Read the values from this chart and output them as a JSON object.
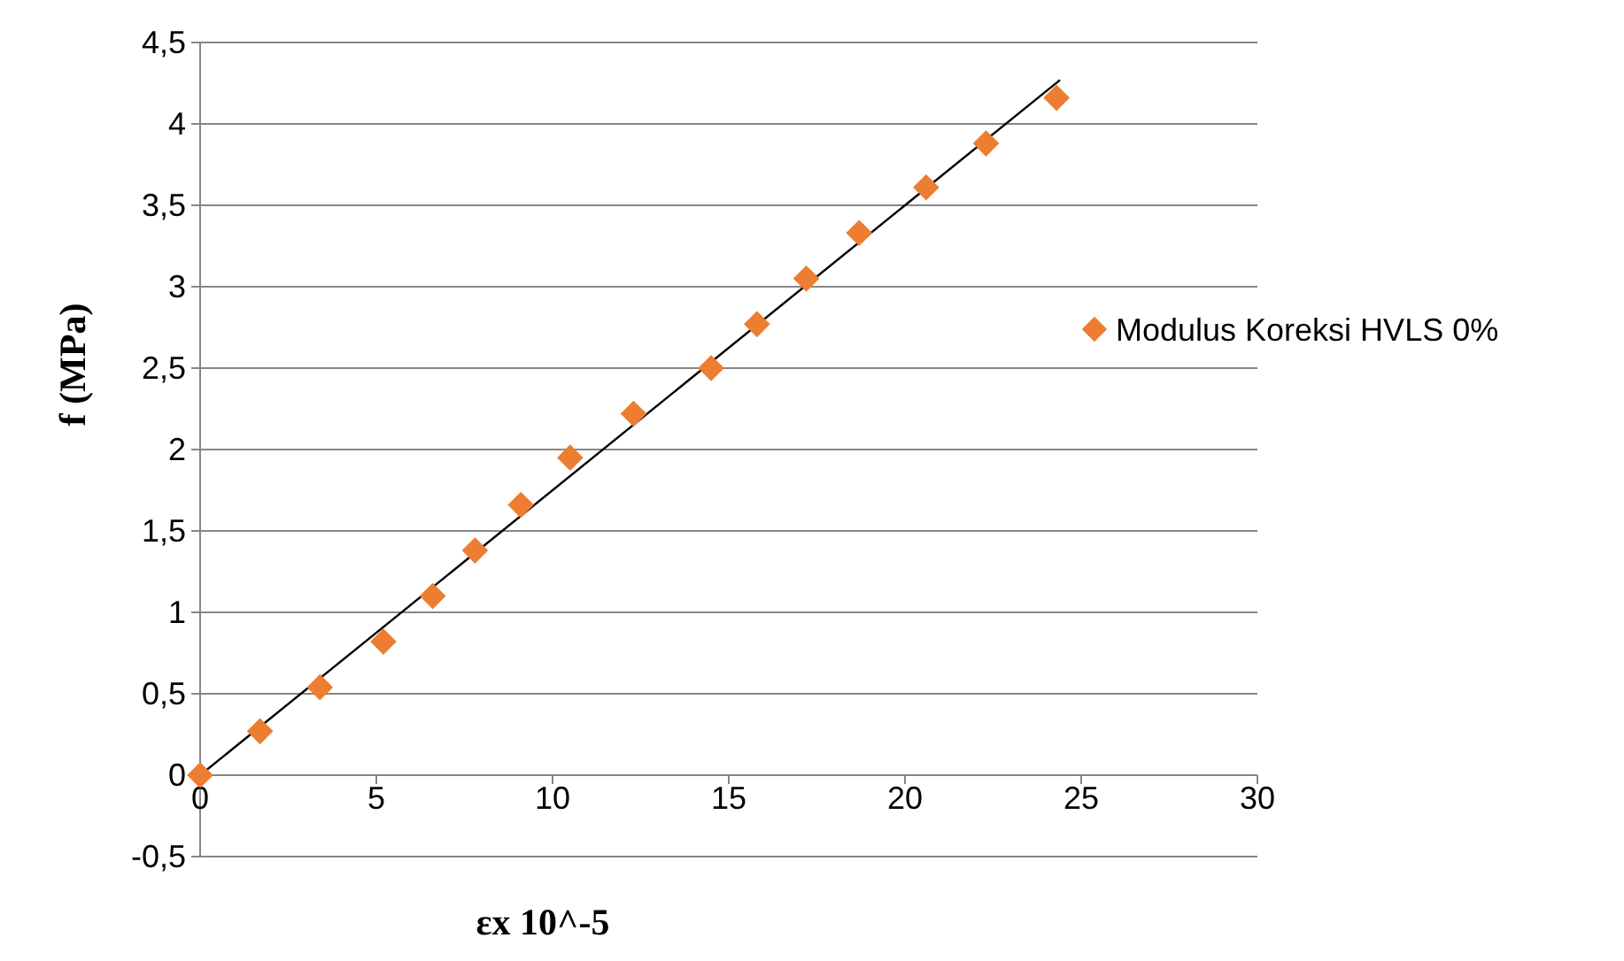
{
  "chart_data": {
    "type": "scatter",
    "xlabel": "εx 10^-5",
    "ylabel": "f (MPa)",
    "xlim": [
      0,
      30
    ],
    "xticks": [
      0,
      5,
      10,
      15,
      20,
      25,
      30
    ],
    "ylim": [
      -0.5,
      4.5
    ],
    "yticks": [
      {
        "value": -0.5,
        "label": "-0,5"
      },
      0,
      {
        "value": 0.5,
        "label": "0,5"
      },
      1,
      {
        "value": 1.5,
        "label": "1,5"
      },
      2,
      {
        "value": 2.5,
        "label": "2,5"
      },
      3,
      {
        "value": 3.5,
        "label": "3,5"
      },
      4,
      {
        "value": 4.5,
        "label": "4,5"
      }
    ],
    "grid": "y",
    "legend": "right",
    "series": [
      {
        "name": "Modulus Koreksi HVLS 0%",
        "color": "#ed7d31",
        "marker": "diamond",
        "x": [
          0,
          1.7,
          3.4,
          5.2,
          6.6,
          7.8,
          9.1,
          10.5,
          12.3,
          14.5,
          15.8,
          17.2,
          18.7,
          20.6,
          22.3,
          24.3
        ],
        "values": [
          0,
          0.27,
          0.54,
          0.82,
          1.1,
          1.38,
          1.66,
          1.95,
          2.22,
          2.5,
          2.77,
          3.05,
          3.33,
          3.61,
          3.88,
          4.16
        ]
      },
      {
        "type": "line",
        "marker": "none",
        "color": "#000000",
        "x": [
          0,
          24.4
        ],
        "values": [
          0,
          4.27
        ]
      }
    ]
  }
}
